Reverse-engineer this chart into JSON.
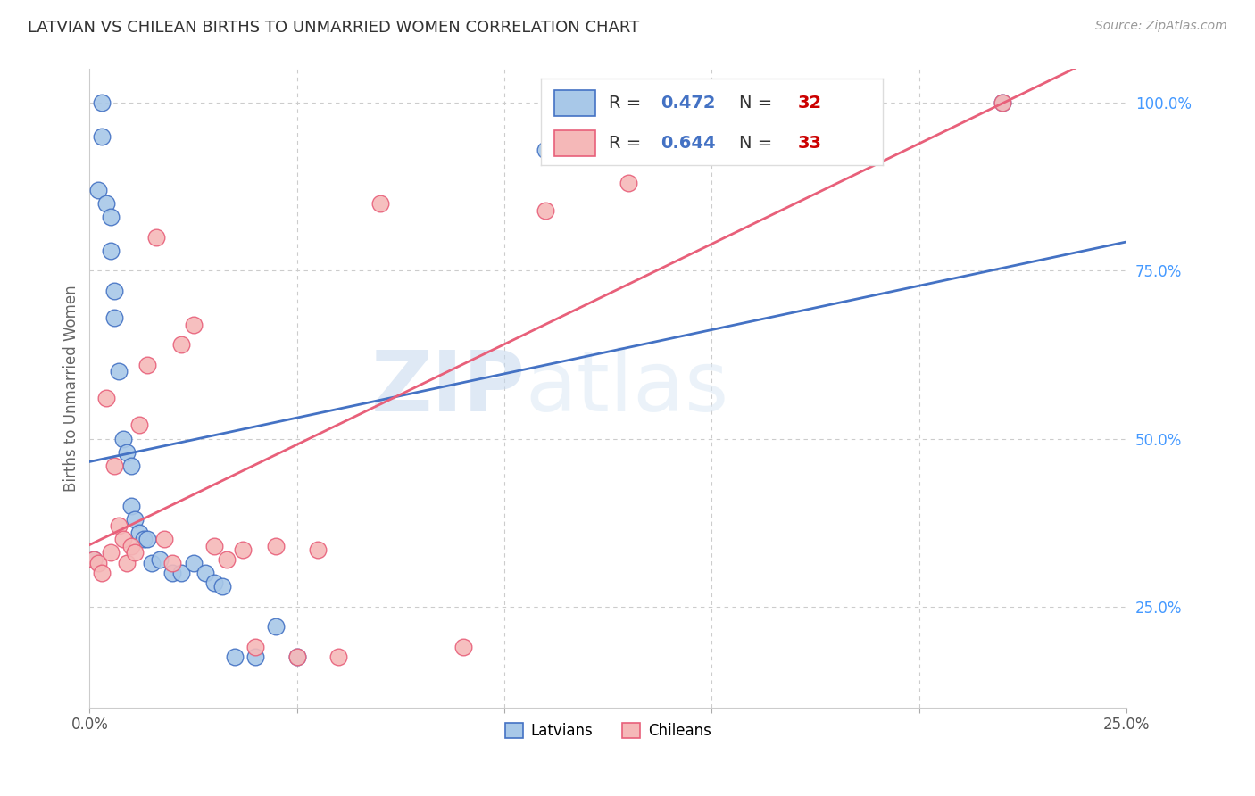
{
  "title": "LATVIAN VS CHILEAN BIRTHS TO UNMARRIED WOMEN CORRELATION CHART",
  "source": "Source: ZipAtlas.com",
  "ylabel": "Births to Unmarried Women",
  "xlim": [
    0.0,
    0.25
  ],
  "ylim": [
    0.1,
    1.05
  ],
  "latvian_color": "#a8c8e8",
  "chilean_color": "#f5b8b8",
  "latvian_line_color": "#4472c4",
  "chilean_line_color": "#e8607a",
  "latvian_R": 0.472,
  "latvian_N": 32,
  "chilean_R": 0.644,
  "chilean_N": 33,
  "R_text_color": "#4472c4",
  "N_text_color": "#cc0000",
  "watermark_color": "#dce9f5",
  "background_color": "#ffffff",
  "latvian_x": [
    0.001,
    0.002,
    0.003,
    0.003,
    0.004,
    0.005,
    0.005,
    0.006,
    0.006,
    0.007,
    0.008,
    0.009,
    0.01,
    0.01,
    0.011,
    0.012,
    0.013,
    0.014,
    0.015,
    0.017,
    0.02,
    0.022,
    0.025,
    0.028,
    0.03,
    0.032,
    0.035,
    0.04,
    0.045,
    0.05,
    0.11,
    0.22
  ],
  "latvian_y": [
    0.32,
    0.87,
    0.95,
    1.0,
    0.85,
    0.83,
    0.78,
    0.72,
    0.68,
    0.6,
    0.5,
    0.48,
    0.46,
    0.4,
    0.38,
    0.36,
    0.35,
    0.35,
    0.315,
    0.32,
    0.3,
    0.3,
    0.315,
    0.3,
    0.285,
    0.28,
    0.175,
    0.175,
    0.22,
    0.175,
    0.93,
    1.0
  ],
  "chilean_x": [
    0.001,
    0.002,
    0.003,
    0.004,
    0.005,
    0.006,
    0.007,
    0.008,
    0.009,
    0.01,
    0.011,
    0.012,
    0.014,
    0.016,
    0.018,
    0.02,
    0.022,
    0.025,
    0.03,
    0.033,
    0.037,
    0.04,
    0.045,
    0.05,
    0.055,
    0.06,
    0.07,
    0.09,
    0.11,
    0.13,
    0.15,
    0.175,
    0.22
  ],
  "chilean_y": [
    0.32,
    0.315,
    0.3,
    0.56,
    0.33,
    0.46,
    0.37,
    0.35,
    0.315,
    0.34,
    0.33,
    0.52,
    0.61,
    0.8,
    0.35,
    0.315,
    0.64,
    0.67,
    0.34,
    0.32,
    0.335,
    0.19,
    0.34,
    0.175,
    0.335,
    0.175,
    0.85,
    0.19,
    0.84,
    0.88,
    0.93,
    0.93,
    1.0
  ]
}
